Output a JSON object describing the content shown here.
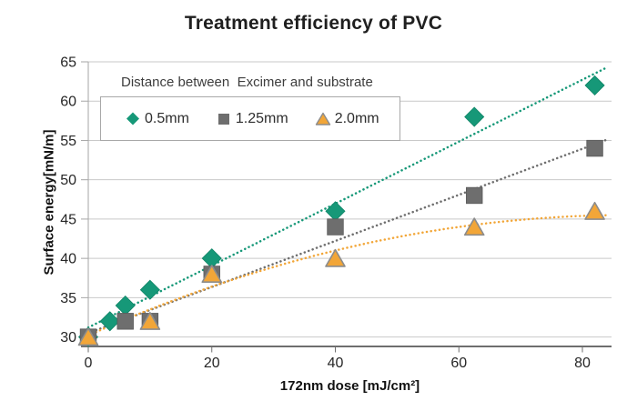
{
  "chart_data": {
    "type": "scatter",
    "title": "Treatment efficiency of PVC",
    "xlabel": "172nm dose [mJ/cm²]",
    "ylabel": "Surface energy[mN/m]",
    "legend_title": "Distance between  Excimer and substrate",
    "legend_position": "top-left-inside",
    "grid": "horizontal",
    "x_ticks": [
      0,
      20,
      40,
      60,
      80
    ],
    "y_ticks": [
      30,
      35,
      40,
      45,
      50,
      55,
      60,
      65
    ],
    "x_range": [
      0,
      84.7
    ],
    "y_range": [
      28.8,
      65
    ],
    "colors": {
      "grid": "#c9c9c9",
      "axis": "#6e6e6e",
      "y_axis_line": "#a6a6a6",
      "tick_text": "#262626",
      "triangle_stroke": "#8c8c8c"
    },
    "series": [
      {
        "name": "0.5mm",
        "marker": "diamond",
        "color": "#169878",
        "points": [
          [
            0,
            30
          ],
          [
            3.5,
            32
          ],
          [
            6,
            34
          ],
          [
            10,
            36
          ],
          [
            20,
            40
          ],
          [
            40,
            46
          ],
          [
            62.5,
            58
          ],
          [
            82,
            62
          ]
        ],
        "trendline": {
          "type": "linear",
          "intercept": 31.2,
          "slope": 0.394
        }
      },
      {
        "name": "1.25mm",
        "marker": "square",
        "color": "#6e6e6e",
        "points": [
          [
            0,
            30
          ],
          [
            6,
            32
          ],
          [
            10,
            32
          ],
          [
            20,
            38
          ],
          [
            40,
            44
          ],
          [
            62.5,
            48
          ],
          [
            82,
            54
          ]
        ],
        "trendline": {
          "type": "linear",
          "intercept": 30.5,
          "slope": 0.293
        }
      },
      {
        "name": "2.0mm",
        "marker": "triangle",
        "color": "#f2a638",
        "points": [
          [
            0,
            30
          ],
          [
            10,
            32
          ],
          [
            20,
            38
          ],
          [
            40,
            40
          ],
          [
            62.5,
            44
          ],
          [
            82,
            46
          ]
        ],
        "trendline": {
          "type": "quadratic",
          "a": 30.2,
          "b": 0.35,
          "c": -0.002
        }
      }
    ]
  }
}
